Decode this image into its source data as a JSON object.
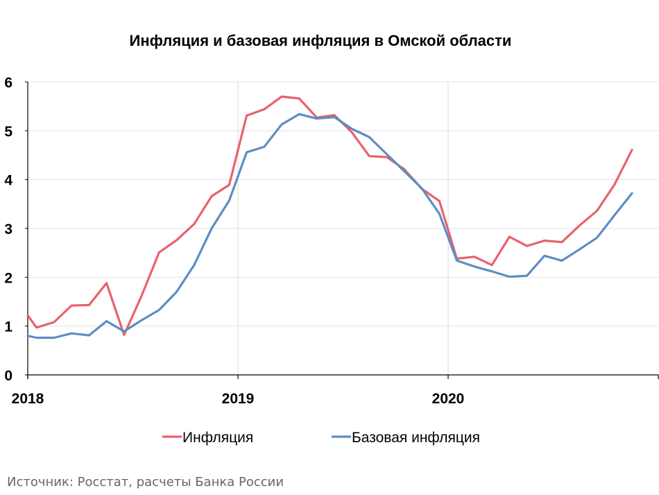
{
  "chart_data": {
    "type": "line",
    "title": "Инфляция и базовая инфляция в Омской области",
    "xlabel": "",
    "ylabel": "",
    "ylim": [
      0,
      6
    ],
    "y_ticks": [
      "0",
      "1",
      "2",
      "3",
      "4",
      "5",
      "6"
    ],
    "x_ticks": [
      {
        "label": "2018",
        "month_index": 0
      },
      {
        "label": "2019",
        "month_index": 12
      },
      {
        "label": "2020",
        "month_index": 24
      }
    ],
    "x_range": [
      0,
      36
    ],
    "vertical_gridlines_at": [
      12,
      24
    ],
    "months": [
      "янв 2018",
      "фев 2018",
      "мар 2018",
      "апр 2018",
      "май 2018",
      "июн 2018",
      "июл 2018",
      "авг 2018",
      "сен 2018",
      "окт 2018",
      "ноя 2018",
      "дек 2018",
      "янв 2019",
      "фев 2019",
      "мар 2019",
      "апр 2019",
      "май 2019",
      "июн 2019",
      "июл 2019",
      "авг 2019",
      "сен 2019",
      "окт 2019",
      "ноя 2019",
      "дек 2019",
      "янв 2020",
      "фев 2020",
      "мар 2020",
      "апр 2020",
      "май 2020",
      "июн 2020",
      "июл 2020",
      "авг 2020",
      "сен 2020",
      "окт 2020",
      "ноя 2020",
      "дек 2020"
    ],
    "series": [
      {
        "name": "Инфляция",
        "color": "#E8626B",
        "x": [
          0,
          0.5,
          1.5,
          2.5,
          3.5,
          4.5,
          5.5,
          6.5,
          7.5,
          8.5,
          9.5,
          10.5,
          11.5,
          12.5,
          13.5,
          14.5,
          15.5,
          16.5,
          17.5,
          18.5,
          19.5,
          20.5,
          21.5,
          22.5,
          23.5,
          24.5,
          25.5,
          26.5,
          27.5,
          28.5,
          29.5,
          30.5,
          31.5,
          32.5,
          33.5,
          34.5
        ],
        "values": [
          1.22,
          0.97,
          1.08,
          1.42,
          1.43,
          1.88,
          0.82,
          1.62,
          2.51,
          2.76,
          3.09,
          3.66,
          3.89,
          5.31,
          5.44,
          5.7,
          5.66,
          5.27,
          5.32,
          4.97,
          4.48,
          4.46,
          4.21,
          3.81,
          3.56,
          2.38,
          2.42,
          2.25,
          2.83,
          2.64,
          2.75,
          2.72,
          3.06,
          3.36,
          3.9,
          4.61
        ]
      },
      {
        "name": "Базовая инфляция",
        "color": "#5B8EC4",
        "x": [
          0,
          0.5,
          1.5,
          2.5,
          3.5,
          4.5,
          5.5,
          6.5,
          7.5,
          8.5,
          9.5,
          10.5,
          11.5,
          12.5,
          13.5,
          14.5,
          15.5,
          16.5,
          17.5,
          18.5,
          19.5,
          20.5,
          21.5,
          22.5,
          23.5,
          24.5,
          25.5,
          26.5,
          27.5,
          28.5,
          29.5,
          30.5,
          31.5,
          32.5,
          33.5,
          34.5
        ],
        "values": [
          0.8,
          0.76,
          0.76,
          0.85,
          0.81,
          1.1,
          0.89,
          1.12,
          1.33,
          1.7,
          2.25,
          3.0,
          3.57,
          4.56,
          4.67,
          5.13,
          5.34,
          5.25,
          5.28,
          5.04,
          4.87,
          4.52,
          4.17,
          3.82,
          3.3,
          2.34,
          2.22,
          2.12,
          2.01,
          2.03,
          2.44,
          2.34,
          2.57,
          2.81,
          3.27,
          3.72
        ]
      }
    ],
    "legend_position": "bottom",
    "grid": true
  },
  "source_note": "Источник: Росстат, расчеты Банка России"
}
